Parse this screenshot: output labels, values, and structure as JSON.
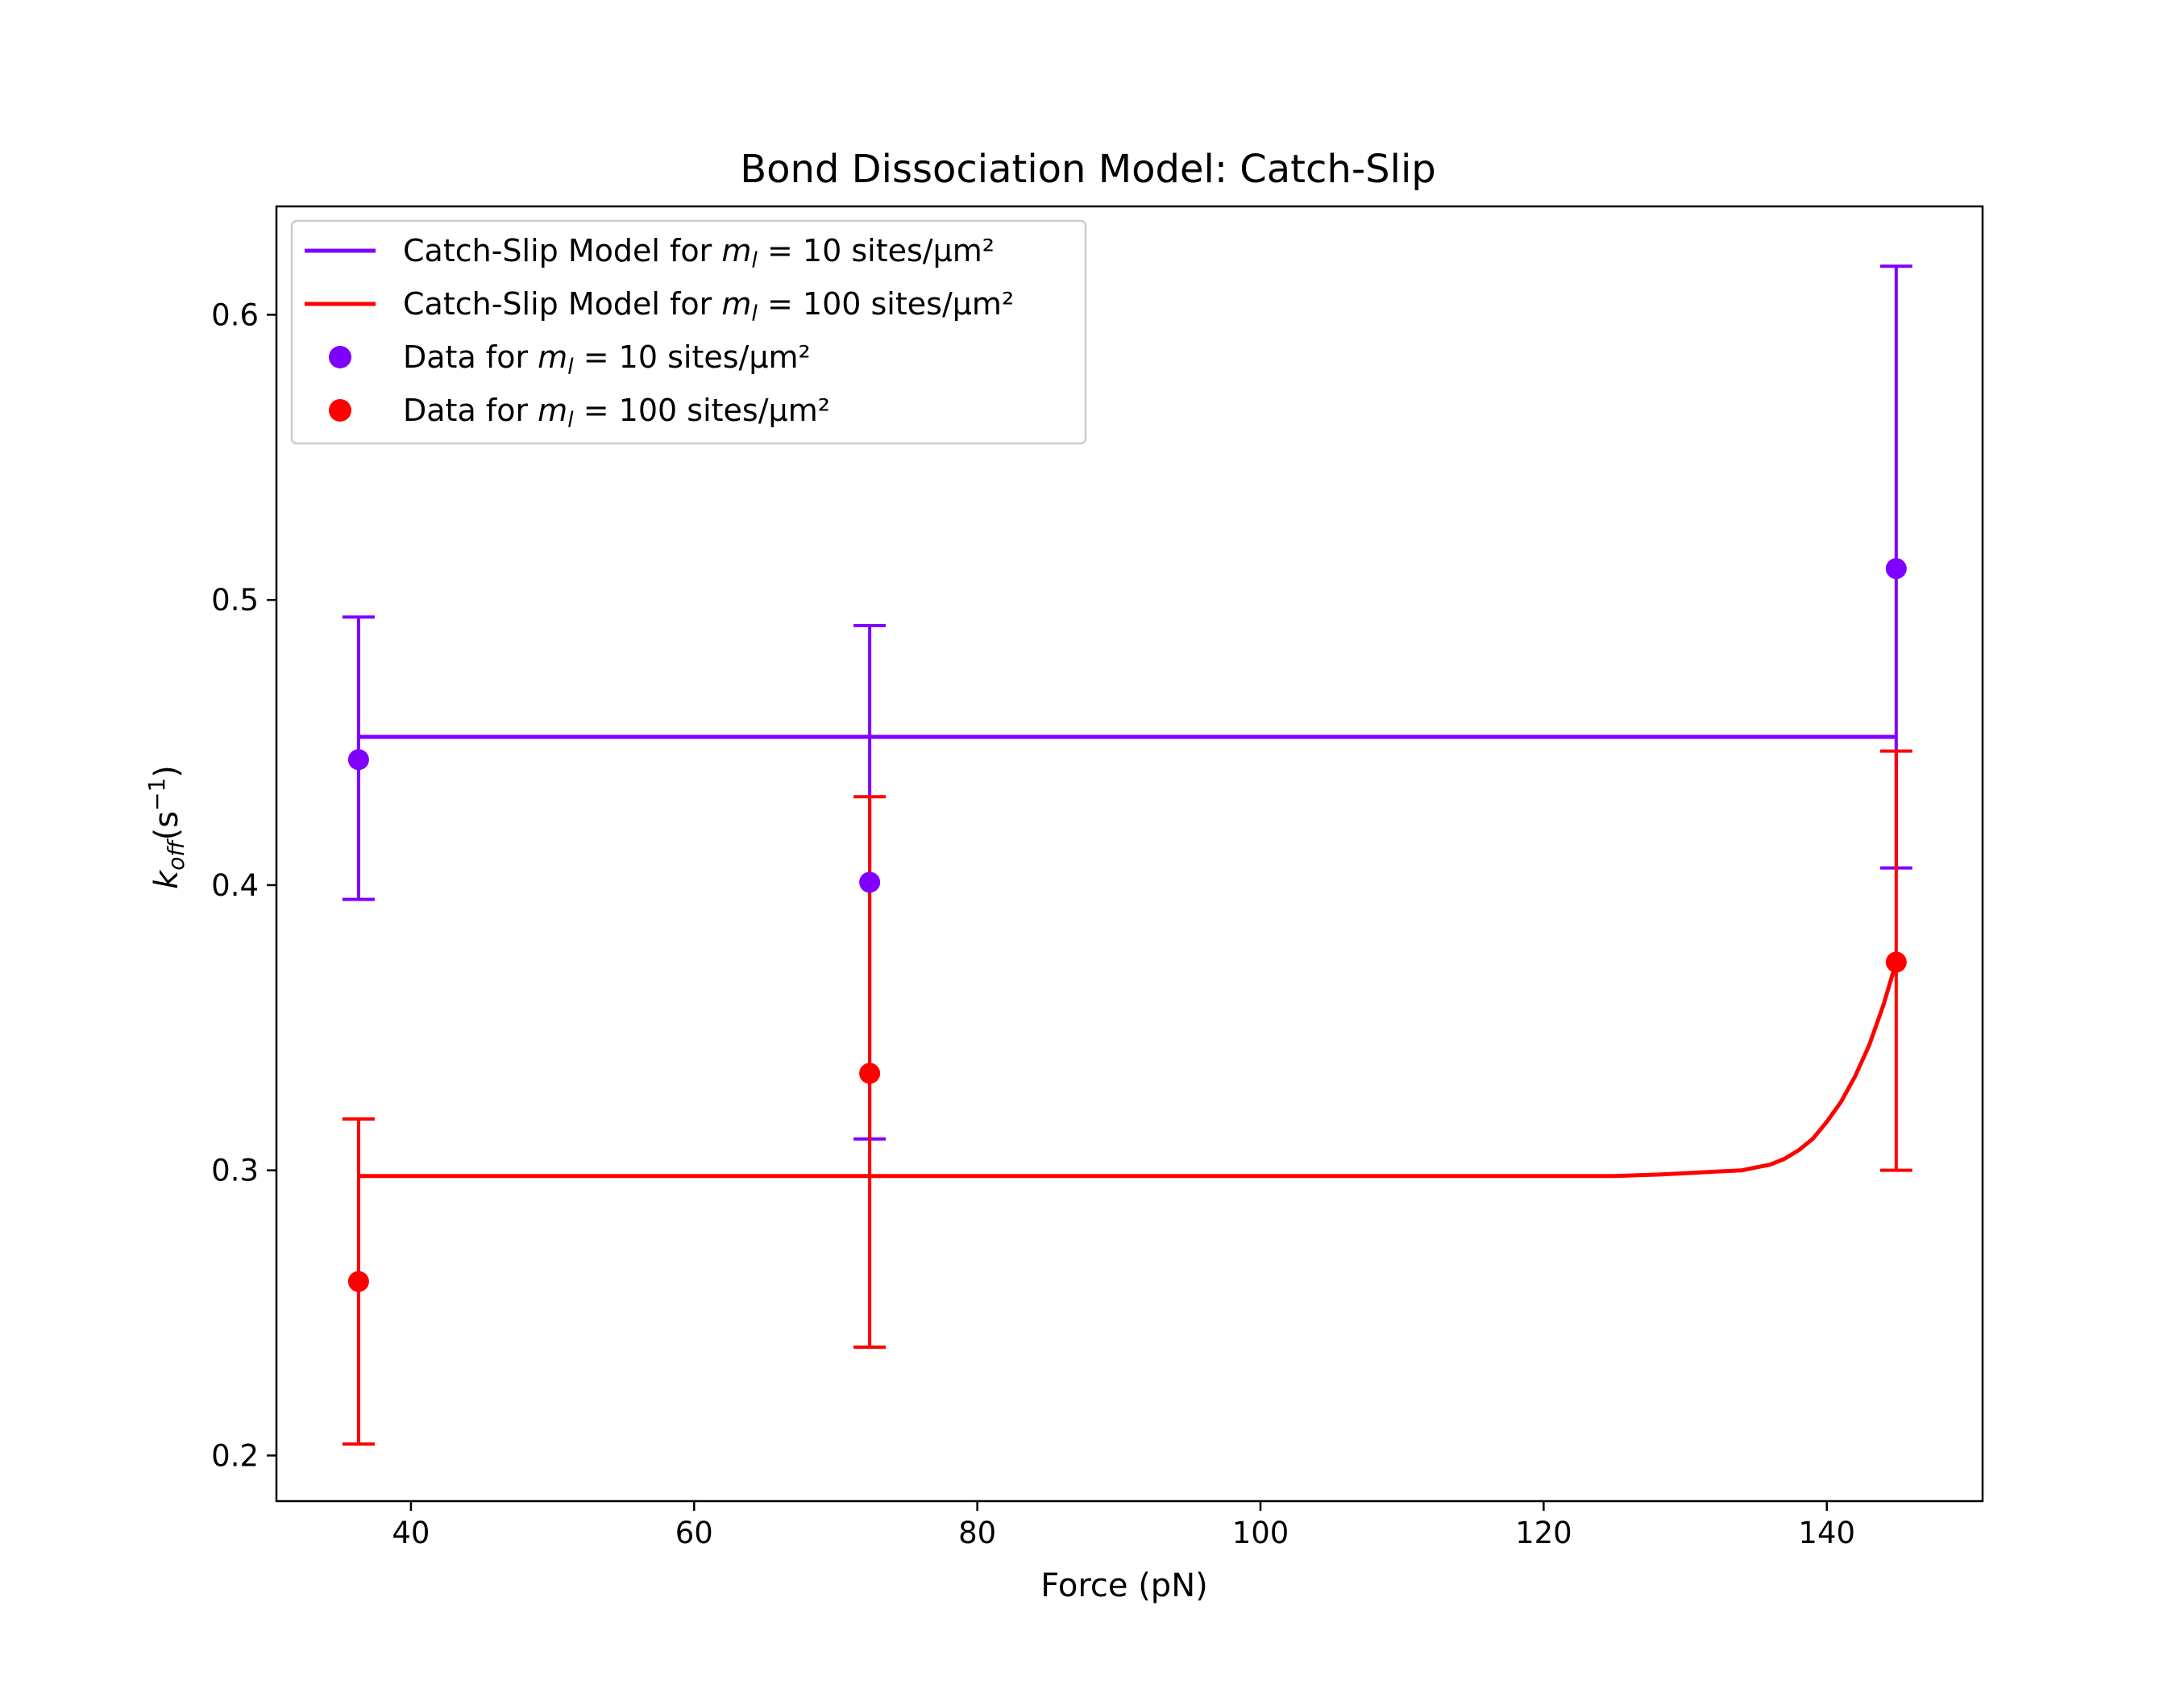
{
  "chart_data": {
    "type": "line",
    "title": "Bond Dissociation Model: Catch-Slip",
    "xlabel": "Force (pN)",
    "ylabel": {
      "base": "k",
      "sub": "off",
      "open": "(s",
      "sup": "−1",
      "close": ")"
    },
    "xlim": [
      30.5,
      151.0
    ],
    "ylim": [
      0.184,
      0.638
    ],
    "xticks": [
      40,
      60,
      80,
      100,
      120,
      140
    ],
    "yticks": [
      0.2,
      0.3,
      0.4,
      0.5,
      0.6
    ],
    "xtick_labels": [
      "40",
      "60",
      "80",
      "100",
      "120",
      "140"
    ],
    "ytick_labels": [
      "0.2",
      "0.3",
      "0.4",
      "0.5",
      "0.6"
    ],
    "grid": false,
    "legend_position": "upper left",
    "colors": {
      "purple": "#7f00ff",
      "red": "#ff0000"
    },
    "legend": [
      {
        "kind": "line",
        "color": "#7f00ff",
        "prefix": "Catch-Slip Model for ",
        "var": "m",
        "sub": "l",
        "suffix": " = 10 sites/μm²"
      },
      {
        "kind": "line",
        "color": "#ff0000",
        "prefix": "Catch-Slip Model for ",
        "var": "m",
        "sub": "l",
        "suffix": " = 100 sites/μm²"
      },
      {
        "kind": "point",
        "color": "#7f00ff",
        "prefix": "Data for ",
        "var": "m",
        "sub": "l",
        "suffix": " = 10 sites/μm²"
      },
      {
        "kind": "point",
        "color": "#ff0000",
        "prefix": "Data for ",
        "var": "m",
        "sub": "l",
        "suffix": " = 100 sites/μm²"
      }
    ],
    "model_series": [
      {
        "name": "Catch-Slip Model for m_l = 10 sites/μm²",
        "color": "#7f00ff",
        "x": [
          36.3,
          60,
          80,
          100,
          120,
          140,
          144.9
        ],
        "y": [
          0.452,
          0.452,
          0.452,
          0.452,
          0.452,
          0.452,
          0.452
        ]
      },
      {
        "name": "Catch-Slip Model for m_l = 100 sites/μm²",
        "color": "#ff0000",
        "x": [
          36.3,
          60,
          80,
          100,
          110,
          120,
          125,
          128,
          130,
          132,
          134,
          135,
          136,
          137,
          138,
          139,
          140,
          141,
          142,
          143,
          144,
          144.9
        ],
        "y": [
          0.298,
          0.298,
          0.298,
          0.298,
          0.298,
          0.298,
          0.298,
          0.2985,
          0.299,
          0.2995,
          0.3,
          0.301,
          0.302,
          0.304,
          0.307,
          0.311,
          0.317,
          0.324,
          0.333,
          0.344,
          0.358,
          0.373
        ]
      }
    ],
    "data_series": [
      {
        "name": "Data for m_l = 10 sites/μm²",
        "color": "#7f00ff",
        "x": [
          36.3,
          72.4,
          144.9
        ],
        "y": [
          0.444,
          0.401,
          0.511
        ],
        "yerr_low": [
          0.395,
          0.311,
          0.406
        ],
        "yerr_high": [
          0.494,
          0.491,
          0.617
        ]
      },
      {
        "name": "Data for m_l = 100 sites/μm²",
        "color": "#ff0000",
        "x": [
          36.3,
          72.4,
          144.9
        ],
        "y": [
          0.261,
          0.334,
          0.373
        ],
        "yerr_low": [
          0.204,
          0.238,
          0.3
        ],
        "yerr_high": [
          0.318,
          0.431,
          0.447
        ]
      }
    ]
  }
}
